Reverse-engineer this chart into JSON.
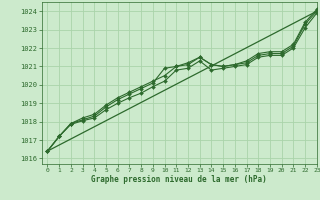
{
  "bg_color": "#cceacc",
  "grid_color": "#aad4aa",
  "line_color": "#2d6a2d",
  "xlabel": "Graphe pression niveau de la mer (hPa)",
  "xlim": [
    -0.5,
    23
  ],
  "ylim": [
    1015.7,
    1024.5
  ],
  "yticks": [
    1016,
    1017,
    1018,
    1019,
    1020,
    1021,
    1022,
    1023,
    1024
  ],
  "xticks": [
    0,
    1,
    2,
    3,
    4,
    5,
    6,
    7,
    8,
    9,
    10,
    11,
    12,
    13,
    14,
    15,
    16,
    17,
    18,
    19,
    20,
    21,
    22,
    23
  ],
  "series_with_markers": [
    [
      1016.4,
      1017.2,
      1017.85,
      1018.05,
      1018.2,
      1018.65,
      1019.0,
      1019.3,
      1019.55,
      1019.9,
      1020.2,
      1020.8,
      1020.9,
      1021.3,
      1020.8,
      1020.9,
      1021.0,
      1021.1,
      1021.5,
      1021.6,
      1021.6,
      1022.0,
      1023.1,
      1023.9
    ],
    [
      1016.4,
      1017.2,
      1017.9,
      1018.1,
      1018.3,
      1018.8,
      1019.2,
      1019.5,
      1019.8,
      1020.1,
      1020.9,
      1021.0,
      1021.1,
      1021.5,
      1021.1,
      1021.0,
      1021.1,
      1021.2,
      1021.6,
      1021.7,
      1021.7,
      1022.1,
      1023.3,
      1024.0
    ],
    [
      1016.4,
      1017.2,
      1017.9,
      1018.2,
      1018.4,
      1018.9,
      1019.3,
      1019.6,
      1019.9,
      1020.2,
      1020.5,
      1021.0,
      1021.2,
      1021.5,
      1021.1,
      1021.0,
      1021.1,
      1021.3,
      1021.7,
      1021.8,
      1021.8,
      1022.2,
      1023.4,
      1024.1
    ]
  ],
  "straight_line": [
    1016.4,
    1024.0
  ],
  "straight_line_x": [
    0,
    23
  ],
  "marker": "D",
  "marker_size": 2.0,
  "lw": 0.8,
  "lw_straight": 0.9
}
